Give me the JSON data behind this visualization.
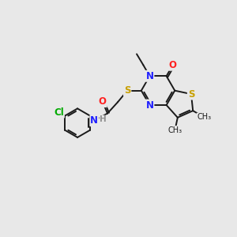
{
  "bg_color": "#e8e8e8",
  "bond_color": "#1a1a1a",
  "colors": {
    "N": "#2020ff",
    "O": "#ff2020",
    "S": "#c8a000",
    "Cl": "#00aa00",
    "C": "#1a1a1a",
    "H": "#909090"
  },
  "figsize": [
    3.0,
    3.0
  ],
  "dpi": 100
}
